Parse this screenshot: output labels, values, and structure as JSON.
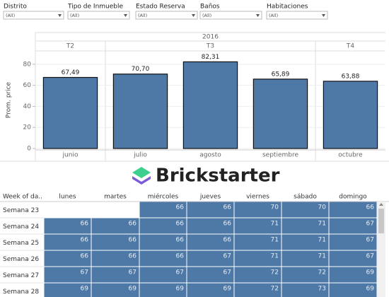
{
  "filters": [
    {
      "label": "Distrito",
      "value": "(All)"
    },
    {
      "label": "Tipo de Inmueble",
      "value": "(All)"
    },
    {
      "label": "Estado Reserva",
      "value": "(All)"
    },
    {
      "label": "Baños",
      "value": "(All)"
    },
    {
      "label": "Habitaciones",
      "value": "(All)"
    }
  ],
  "chart_data": {
    "type": "bar",
    "y_label": "Prom. price",
    "year": "2016",
    "quarters": [
      "T2",
      "T3",
      "T3",
      "T3",
      "T4"
    ],
    "categories": [
      "junio",
      "julio",
      "agosto",
      "septiembre",
      "octubre"
    ],
    "values": [
      67.49,
      70.7,
      82.31,
      65.89,
      63.88
    ],
    "value_labels": [
      "67,49",
      "70,70",
      "82,31",
      "65,89",
      "63,88"
    ],
    "color": "#4e79a7",
    "ylim": [
      0,
      92
    ],
    "yticks": [
      0,
      20,
      40,
      60,
      80
    ],
    "grid": true
  },
  "logo": "Brickstarter",
  "table": {
    "header": [
      "Week of da..",
      "lunes",
      "martes",
      "miércoles",
      "jueves",
      "viernes",
      "sábado",
      "domingo"
    ],
    "rows": [
      {
        "label": "Semana 23",
        "cells": [
          null,
          null,
          66,
          66,
          70,
          70,
          66
        ]
      },
      {
        "label": "Semana 24",
        "cells": [
          66,
          66,
          66,
          66,
          71,
          71,
          67
        ]
      },
      {
        "label": "Semana 25",
        "cells": [
          66,
          66,
          66,
          66,
          71,
          71,
          67
        ]
      },
      {
        "label": "Semana 26",
        "cells": [
          66,
          66,
          66,
          67,
          71,
          71,
          67
        ]
      },
      {
        "label": "Semana 27",
        "cells": [
          67,
          67,
          67,
          67,
          72,
          72,
          69
        ]
      },
      {
        "label": "Semana 28",
        "cells": [
          69,
          69,
          69,
          69,
          72,
          73,
          69
        ]
      }
    ]
  }
}
